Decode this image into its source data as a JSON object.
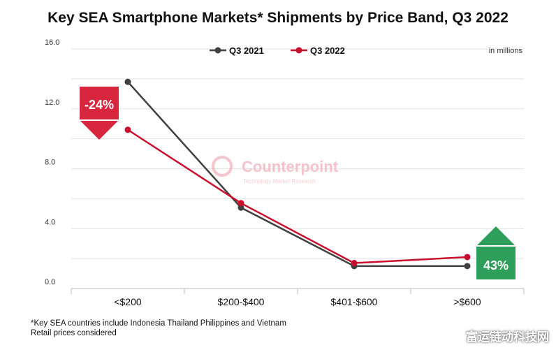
{
  "chart_data": {
    "type": "line",
    "title": "Key SEA Smartphone Markets* Shipments by Price Band, Q3 2022",
    "unit_note": "in millions",
    "categories": [
      "<$200",
      "$200-$400",
      "$401-$600",
      ">$600"
    ],
    "series": [
      {
        "name": "Q3 2021",
        "color": "#404040",
        "values": [
          13.8,
          5.4,
          1.5,
          1.5
        ]
      },
      {
        "name": "Q3 2022",
        "color": "#c8102e",
        "values": [
          10.6,
          5.7,
          1.7,
          2.1
        ]
      }
    ],
    "y_ticks": [
      "0.0",
      "4.0",
      "8.0",
      "12.0",
      "16.0"
    ],
    "ylim": [
      0,
      16
    ],
    "grid": true,
    "legend": "top-center",
    "annotations": [
      {
        "text": "-24%",
        "category": "<$200",
        "direction": "down",
        "color": "#d7263d"
      },
      {
        "text": "43%",
        "category": ">$600",
        "direction": "up",
        "color": "#2e9e5b"
      }
    ],
    "watermark": {
      "brand": "Counterpoint",
      "tagline": "Technology Market Research"
    }
  },
  "footnotes": [
    "*Key SEA countries include Indonesia Thailand Philippines and Vietnam",
    "Retail prices considered"
  ],
  "site_mark": "富运链动科技网"
}
